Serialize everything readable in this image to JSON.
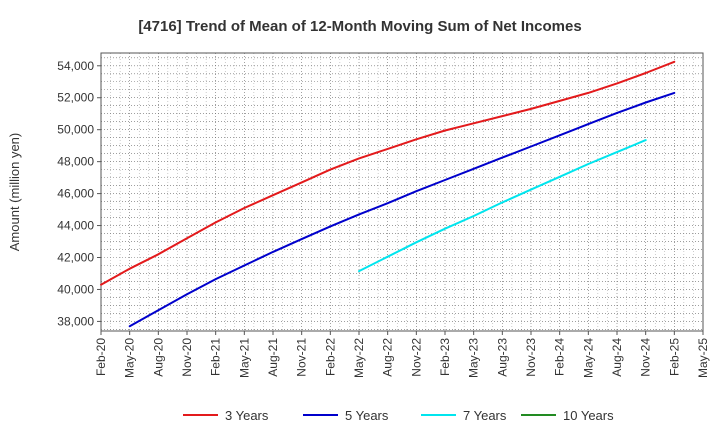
{
  "chart_data": {
    "type": "line",
    "title": "[4716]  Trend of Mean of 12-Month Moving Sum of Net Incomes",
    "xlabel": "",
    "ylabel": "Amount (million yen)",
    "ylim": [
      37400,
      54800
    ],
    "y_ticks": [
      38000,
      40000,
      42000,
      44000,
      46000,
      48000,
      50000,
      52000,
      54000
    ],
    "y_tick_labels": [
      "38,000",
      "40,000",
      "42,000",
      "44,000",
      "46,000",
      "48,000",
      "50,000",
      "52,000",
      "54,000"
    ],
    "x_tick_labels": [
      "Feb-20",
      "May-20",
      "Aug-20",
      "Nov-20",
      "Feb-21",
      "May-21",
      "Aug-21",
      "Nov-21",
      "Feb-22",
      "May-22",
      "Aug-22",
      "Nov-22",
      "Feb-23",
      "May-23",
      "Aug-23",
      "Nov-23",
      "Feb-24",
      "May-24",
      "Aug-24",
      "Nov-24",
      "Feb-25",
      "May-25"
    ],
    "grid": true,
    "legend_position": "bottom",
    "series": [
      {
        "name": "3 Years",
        "color": "#e31a1c",
        "points": [
          [
            "Feb-20",
            40300
          ],
          [
            "May-20",
            41300
          ],
          [
            "Aug-20",
            42200
          ],
          [
            "Nov-20",
            43200
          ],
          [
            "Feb-21",
            44200
          ],
          [
            "May-21",
            45100
          ],
          [
            "Aug-21",
            45900
          ],
          [
            "Nov-21",
            46700
          ],
          [
            "Feb-22",
            47500
          ],
          [
            "May-22",
            48200
          ],
          [
            "Aug-22",
            48800
          ],
          [
            "Nov-22",
            49400
          ],
          [
            "Feb-23",
            49950
          ],
          [
            "May-23",
            50400
          ],
          [
            "Aug-23",
            50850
          ],
          [
            "Nov-23",
            51300
          ],
          [
            "Feb-24",
            51800
          ],
          [
            "May-24",
            52300
          ],
          [
            "Aug-24",
            52900
          ],
          [
            "Nov-24",
            53550
          ],
          [
            "Feb-25",
            54250
          ]
        ]
      },
      {
        "name": "5 Years",
        "color": "#0000cc",
        "points": [
          [
            "May-20",
            37700
          ],
          [
            "Aug-20",
            38700
          ],
          [
            "Nov-20",
            39700
          ],
          [
            "Feb-21",
            40650
          ],
          [
            "May-21",
            41500
          ],
          [
            "Aug-21",
            42350
          ],
          [
            "Nov-21",
            43150
          ],
          [
            "Feb-22",
            43950
          ],
          [
            "May-22",
            44700
          ],
          [
            "Aug-22",
            45400
          ],
          [
            "Nov-22",
            46150
          ],
          [
            "Feb-23",
            46850
          ],
          [
            "May-23",
            47550
          ],
          [
            "Aug-23",
            48250
          ],
          [
            "Nov-23",
            48950
          ],
          [
            "Feb-24",
            49650
          ],
          [
            "May-24",
            50350
          ],
          [
            "Aug-24",
            51050
          ],
          [
            "Nov-24",
            51700
          ],
          [
            "Feb-25",
            52300
          ]
        ]
      },
      {
        "name": "7 Years",
        "color": "#00e5ee",
        "points": [
          [
            "May-22",
            41150
          ],
          [
            "Aug-22",
            42050
          ],
          [
            "Nov-22",
            42950
          ],
          [
            "Feb-23",
            43800
          ],
          [
            "May-23",
            44600
          ],
          [
            "Aug-23",
            45450
          ],
          [
            "Nov-23",
            46250
          ],
          [
            "Feb-24",
            47050
          ],
          [
            "May-24",
            47850
          ],
          [
            "Aug-24",
            48600
          ],
          [
            "Nov-24",
            49350
          ]
        ]
      },
      {
        "name": "10 Years",
        "color": "#228b22",
        "points": []
      }
    ]
  }
}
